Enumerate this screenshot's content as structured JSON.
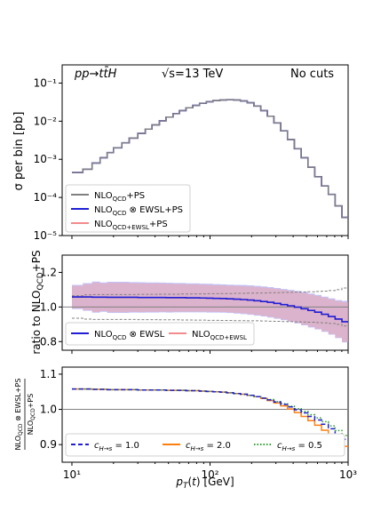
{
  "chart_data": [
    {
      "panel": "top",
      "type": "line",
      "annotations": {
        "process": "pp→tt̄H",
        "energy": "√s=13 TeV",
        "cuts": "No cuts"
      },
      "ylabel": "σ per bin [pb]",
      "yscale": "log",
      "ylim": [
        1e-05,
        0.3
      ],
      "yticks": [
        "10⁻⁵",
        "10⁻⁴",
        "10⁻³",
        "10⁻²",
        "10⁻¹"
      ],
      "x_bin_edges": [
        10,
        12,
        14,
        16,
        18,
        20,
        23,
        26,
        30,
        34,
        38,
        43,
        48,
        54,
        60,
        67,
        75,
        84,
        94,
        105,
        118,
        132,
        148,
        166,
        186,
        208,
        233,
        260,
        290,
        325,
        364,
        408,
        457,
        512,
        573,
        642,
        719,
        805,
        902,
        1000
      ],
      "series": [
        {
          "name": "NLO_QCD+PS",
          "color": "#808080",
          "values": [
            0.00045,
            0.00055,
            0.0008,
            0.0011,
            0.0015,
            0.002,
            0.0027,
            0.0036,
            0.0048,
            0.0062,
            0.008,
            0.0102,
            0.0128,
            0.0158,
            0.019,
            0.0225,
            0.026,
            0.0295,
            0.0325,
            0.0348,
            0.036,
            0.0365,
            0.036,
            0.034,
            0.0305,
            0.025,
            0.019,
            0.0135,
            0.009,
            0.0056,
            0.0033,
            0.0019,
            0.0011,
            0.00062,
            0.00035,
            0.0002,
            0.00012,
            6e-05,
            3e-05
          ]
        },
        {
          "name": "NLO_QCD⊗EWSL+PS",
          "color": "#1f1fd6",
          "values": [
            0.00045,
            0.00055,
            0.0008,
            0.0011,
            0.0015,
            0.002,
            0.0027,
            0.0036,
            0.0048,
            0.0062,
            0.008,
            0.0102,
            0.0128,
            0.0158,
            0.019,
            0.0225,
            0.026,
            0.0295,
            0.0325,
            0.0348,
            0.036,
            0.0365,
            0.036,
            0.034,
            0.0305,
            0.025,
            0.019,
            0.0135,
            0.009,
            0.0056,
            0.0033,
            0.0019,
            0.0011,
            0.00062,
            0.00035,
            0.0002,
            0.00012,
            6e-05,
            3e-05
          ]
        },
        {
          "name": "NLO_QCD+EWSL+PS",
          "color": "#f28c8c",
          "values": [
            0.00045,
            0.00055,
            0.0008,
            0.0011,
            0.0015,
            0.002,
            0.0027,
            0.0036,
            0.0048,
            0.0062,
            0.008,
            0.0102,
            0.0128,
            0.0158,
            0.019,
            0.0225,
            0.026,
            0.0295,
            0.0325,
            0.0348,
            0.036,
            0.0365,
            0.036,
            0.034,
            0.0305,
            0.025,
            0.019,
            0.0135,
            0.009,
            0.0056,
            0.0033,
            0.0019,
            0.0011,
            0.00062,
            0.00035,
            0.0002,
            0.00012,
            6e-05,
            3e-05
          ]
        }
      ],
      "legend": {
        "placement": "lower-left",
        "entries": [
          {
            "base": "NLO",
            "sub": "QCD",
            "rest": "+PS",
            "color": "#808080"
          },
          {
            "base": "NLO",
            "sub": "QCD",
            "rest": " ⊗ EWSL+PS",
            "color": "#1f1fd6"
          },
          {
            "base": "NLO",
            "sub": "QCD+EWSL",
            "rest": "+PS",
            "color": "#f28c8c"
          }
        ]
      }
    },
    {
      "panel": "middle",
      "type": "line",
      "ylabel": "ratio to NLO_QCD+PS",
      "ylim": [
        0.75,
        1.3
      ],
      "yticks": [
        "0.8",
        "1.0",
        "1.2"
      ],
      "series": [
        {
          "name": "NLO_QCD⊗EWSL",
          "color": "#1f1fd6",
          "values": [
            1.058,
            1.058,
            1.057,
            1.057,
            1.056,
            1.056,
            1.056,
            1.056,
            1.055,
            1.055,
            1.055,
            1.055,
            1.054,
            1.054,
            1.054,
            1.053,
            1.053,
            1.052,
            1.051,
            1.05,
            1.049,
            1.047,
            1.045,
            1.043,
            1.04,
            1.036,
            1.032,
            1.027,
            1.021,
            1.014,
            1.007,
            0.999,
            0.99,
            0.98,
            0.97,
            0.958,
            0.945,
            0.93,
            0.915
          ],
          "band": [
            0.07,
            0.08,
            0.09,
            0.085,
            0.09,
            0.09,
            0.09,
            0.088,
            0.088,
            0.087,
            0.087,
            0.086,
            0.086,
            0.085,
            0.085,
            0.084,
            0.084,
            0.083,
            0.083,
            0.082,
            0.082,
            0.082,
            0.083,
            0.084,
            0.085,
            0.086,
            0.087,
            0.088,
            0.089,
            0.09,
            0.092,
            0.094,
            0.096,
            0.098,
            0.1,
            0.102,
            0.105,
            0.11,
            0.12
          ]
        },
        {
          "name": "NLO_QCD+EWSL",
          "color": "#f28c8c",
          "values": [
            1.057,
            1.057,
            1.056,
            1.056,
            1.055,
            1.055,
            1.055,
            1.055,
            1.054,
            1.054,
            1.054,
            1.054,
            1.053,
            1.053,
            1.053,
            1.052,
            1.052,
            1.051,
            1.05,
            1.049,
            1.048,
            1.046,
            1.044,
            1.042,
            1.039,
            1.035,
            1.031,
            1.026,
            1.02,
            1.013,
            1.006,
            0.998,
            0.989,
            0.979,
            0.969,
            0.957,
            0.944,
            0.929,
            0.914
          ],
          "band": [
            0.065,
            0.075,
            0.085,
            0.08,
            0.085,
            0.085,
            0.085,
            0.083,
            0.083,
            0.082,
            0.082,
            0.081,
            0.081,
            0.08,
            0.08,
            0.079,
            0.079,
            0.078,
            0.078,
            0.077,
            0.077,
            0.077,
            0.078,
            0.079,
            0.08,
            0.081,
            0.082,
            0.083,
            0.084,
            0.085,
            0.087,
            0.089,
            0.091,
            0.093,
            0.095,
            0.097,
            0.1,
            0.105,
            0.115
          ]
        },
        {
          "name": "NLO_QCD+PS",
          "color": "#808080",
          "values": [
            1.0,
            1.0,
            1.0,
            1.0,
            1.0,
            1.0,
            1.0,
            1.0,
            1.0,
            1.0,
            1.0,
            1.0,
            1.0,
            1.0,
            1.0,
            1.0,
            1.0,
            1.0,
            1.0,
            1.0,
            1.0,
            1.0,
            1.0,
            1.0,
            1.0,
            1.0,
            1.0,
            1.0,
            1.0,
            1.0,
            1.0,
            1.0,
            1.0,
            1.0,
            1.0,
            1.0,
            1.0,
            1.0,
            1.0
          ],
          "band": [
            0.065,
            0.07,
            0.072,
            0.072,
            0.072,
            0.072,
            0.072,
            0.072,
            0.073,
            0.073,
            0.073,
            0.074,
            0.074,
            0.074,
            0.075,
            0.075,
            0.076,
            0.076,
            0.077,
            0.077,
            0.078,
            0.078,
            0.079,
            0.079,
            0.08,
            0.08,
            0.081,
            0.082,
            0.083,
            0.084,
            0.085,
            0.086,
            0.087,
            0.088,
            0.09,
            0.092,
            0.095,
            0.1,
            0.11
          ]
        }
      ],
      "legend": {
        "placement": "bottom",
        "entries": [
          {
            "base": "NLO",
            "sub": "QCD",
            "rest": " ⊗ EWSL",
            "color": "#1f1fd6"
          },
          {
            "base": "NLO",
            "sub": "QCD+EWSL",
            "rest": "",
            "color": "#f28c8c"
          }
        ]
      }
    },
    {
      "panel": "bottom",
      "type": "line",
      "ylabel": "NLO_QCD⊗EWSL+PS / NLO_QCD+PS",
      "ylim": [
        0.85,
        1.12
      ],
      "yticks": [
        "0.9",
        "1.0",
        "1.1"
      ],
      "xlabel": "p_T(t) [GeV]",
      "xscale": "log",
      "xlim": [
        8.5,
        1000
      ],
      "xticks": [
        "10¹",
        "10²",
        "10³"
      ],
      "series": [
        {
          "name": "c_{H→s} = 1.0",
          "color": "#1f1fd6",
          "dash": "dashed",
          "values": [
            1.058,
            1.058,
            1.057,
            1.057,
            1.056,
            1.056,
            1.056,
            1.056,
            1.055,
            1.055,
            1.055,
            1.055,
            1.054,
            1.054,
            1.054,
            1.053,
            1.053,
            1.052,
            1.051,
            1.05,
            1.049,
            1.047,
            1.045,
            1.043,
            1.04,
            1.036,
            1.032,
            1.027,
            1.021,
            1.014,
            1.007,
            0.999,
            0.99,
            0.98,
            0.97,
            0.958,
            0.945,
            0.93,
            0.915
          ]
        },
        {
          "name": "c_{H→s} = 2.0",
          "color": "#ff7f0e",
          "dash": "solid",
          "values": [
            1.058,
            1.058,
            1.057,
            1.057,
            1.056,
            1.056,
            1.056,
            1.056,
            1.055,
            1.055,
            1.055,
            1.055,
            1.054,
            1.054,
            1.054,
            1.053,
            1.053,
            1.052,
            1.051,
            1.05,
            1.049,
            1.047,
            1.045,
            1.043,
            1.04,
            1.036,
            1.031,
            1.025,
            1.018,
            1.01,
            1.001,
            0.991,
            0.98,
            0.968,
            0.955,
            0.941,
            0.926,
            0.91,
            0.895
          ]
        },
        {
          "name": "c_{H→s} = 0.5",
          "color": "#2ca02c",
          "dash": "dotted",
          "values": [
            1.058,
            1.058,
            1.057,
            1.057,
            1.056,
            1.056,
            1.056,
            1.056,
            1.055,
            1.055,
            1.055,
            1.055,
            1.054,
            1.054,
            1.054,
            1.053,
            1.053,
            1.052,
            1.051,
            1.05,
            1.049,
            1.047,
            1.045,
            1.043,
            1.04,
            1.036,
            1.032,
            1.028,
            1.022,
            1.016,
            1.009,
            1.002,
            0.994,
            0.985,
            0.976,
            0.965,
            0.953,
            0.94,
            0.926
          ]
        }
      ],
      "legend": {
        "placement": "bottom",
        "entries": [
          {
            "text": "c",
            "sub": "H→s",
            "rest": " = 1.0",
            "color": "#1f1fd6",
            "dash": "dashed"
          },
          {
            "text": "c",
            "sub": "H→s",
            "rest": " = 2.0",
            "color": "#ff7f0e",
            "dash": "solid"
          },
          {
            "text": "c",
            "sub": "H→s",
            "rest": " = 0.5",
            "color": "#2ca02c",
            "dash": "dotted"
          }
        ]
      }
    }
  ]
}
